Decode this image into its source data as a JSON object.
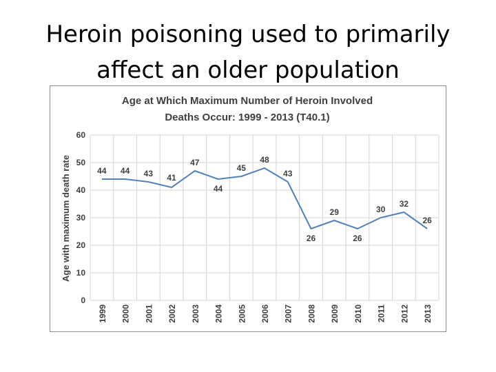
{
  "slide": {
    "title_line1": "Heroin poisoning used to primarily",
    "title_line2": "affect an older population"
  },
  "chart_data": {
    "type": "line",
    "title": "Age at Which Maximum Number of Heroin Involved Deaths Occur: 1999 - 2013 (T40.1)",
    "title_lines": [
      "Age at Which Maximum Number of Heroin Involved",
      "Deaths Occur: 1999 - 2013 (T40.1)"
    ],
    "xlabel": "",
    "ylabel": "Age with maximum death rate",
    "ylim": [
      0,
      60
    ],
    "yticks": [
      0,
      10,
      20,
      30,
      40,
      50,
      60
    ],
    "grid": true,
    "legend": "none",
    "line_color": "#4f81bd",
    "categories": [
      "1999",
      "2000",
      "2001",
      "2002",
      "2003",
      "2004",
      "2005",
      "2006",
      "2007",
      "2008",
      "2009",
      "2010",
      "2011",
      "2012",
      "2013"
    ],
    "series": [
      {
        "values": [
          44,
          44,
          43,
          41,
          47,
          44,
          45,
          48,
          43,
          26,
          29,
          26,
          30,
          32,
          26
        ]
      }
    ]
  }
}
